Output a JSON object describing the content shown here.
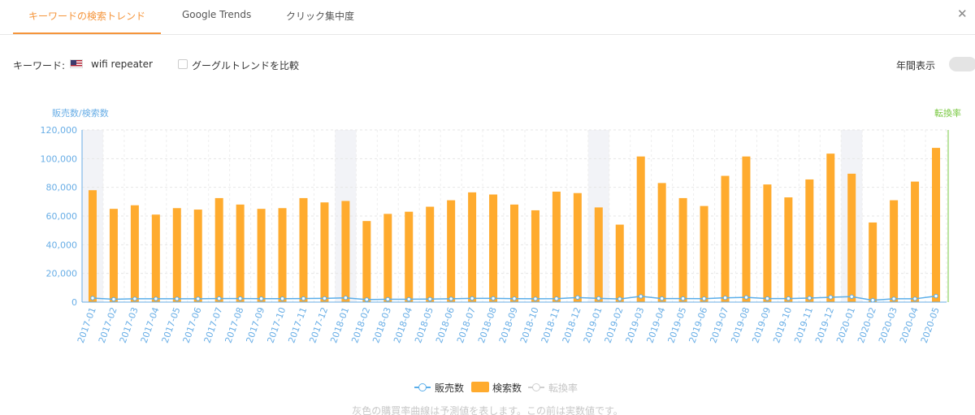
{
  "tabs": [
    {
      "label": "キーワードの検索トレンド",
      "active": true
    },
    {
      "label": "Google Trends",
      "active": false
    },
    {
      "label": "クリック集中度",
      "active": false
    }
  ],
  "close_icon": "close-icon",
  "keyword": {
    "label": "キーワード:",
    "flag": "us-flag-icon",
    "value": "wifi repeater"
  },
  "compare": {
    "label": "グーグルトレンドを比較",
    "checked": false
  },
  "annual": {
    "label": "年間表示",
    "on": false
  },
  "colors": {
    "accent": "#f5953b",
    "bar": "#ffab2e",
    "sales_line": "#5aaeea",
    "conversion": "#7ac943",
    "axis_text": "#69aee6"
  },
  "legend": {
    "sales": "販売数",
    "search": "検索数",
    "conversion": "転換率"
  },
  "footnote": "灰色の購買率曲線は予測値を表します。この前は実数値です。",
  "chart_data": {
    "type": "bar",
    "ylabel_left": "販売数/検索数",
    "ylabel_right": "転換率",
    "ylim": [
      0,
      120000
    ],
    "yticks": [
      "0",
      "20,000",
      "40,000",
      "60,000",
      "80,000",
      "100,000",
      "120,000"
    ],
    "grid": true,
    "legend_position": "bottom",
    "highlighted_categories": [
      "2017-01",
      "2018-01",
      "2019-01",
      "2020-01"
    ],
    "categories": [
      "2017-01",
      "2017-02",
      "2017-03",
      "2017-04",
      "2017-05",
      "2017-06",
      "2017-07",
      "2017-08",
      "2017-09",
      "2017-10",
      "2017-11",
      "2017-12",
      "2018-01",
      "2018-02",
      "2018-03",
      "2018-04",
      "2018-05",
      "2018-06",
      "2018-07",
      "2018-08",
      "2018-09",
      "2018-10",
      "2018-11",
      "2018-12",
      "2019-01",
      "2019-02",
      "2019-03",
      "2019-04",
      "2019-05",
      "2019-06",
      "2019-07",
      "2019-08",
      "2019-09",
      "2019-10",
      "2019-11",
      "2019-12",
      "2020-01",
      "2020-02",
      "2020-03",
      "2020-04",
      "2020-05"
    ],
    "series": [
      {
        "name": "検索数",
        "type": "bar",
        "values": [
          78000,
          65000,
          67500,
          61000,
          65500,
          64500,
          72500,
          68000,
          65000,
          65500,
          72500,
          69500,
          70500,
          56500,
          61500,
          63000,
          66500,
          71000,
          76500,
          75000,
          68000,
          64000,
          77000,
          76000,
          66000,
          54000,
          101500,
          83000,
          72500,
          67000,
          88000,
          101500,
          82000,
          73000,
          85500,
          103500,
          89500,
          55500,
          71000,
          84000,
          107500
        ]
      },
      {
        "name": "販売数",
        "type": "line",
        "values": [
          2800,
          2000,
          2300,
          2300,
          2300,
          2300,
          2500,
          2500,
          2400,
          2400,
          2500,
          2600,
          3000,
          1800,
          2000,
          2000,
          2100,
          2300,
          2600,
          2600,
          2400,
          2300,
          2400,
          3200,
          2600,
          2200,
          4000,
          2500,
          2500,
          2400,
          3000,
          3300,
          2500,
          2500,
          2800,
          3400,
          3800,
          1300,
          2300,
          2300,
          4200
        ]
      }
    ]
  }
}
